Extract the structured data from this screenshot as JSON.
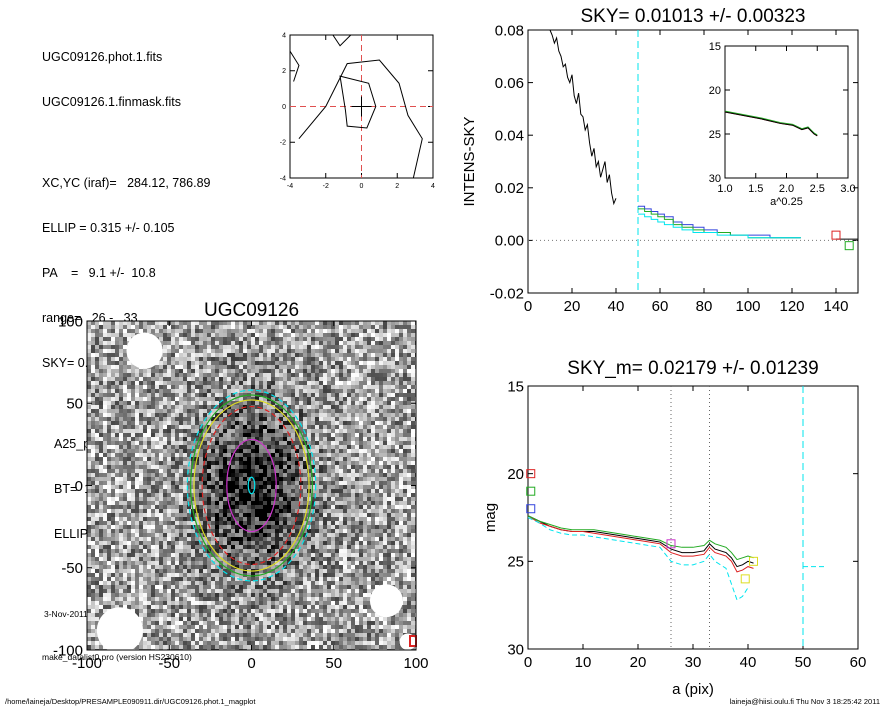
{
  "info": {
    "lines": [
      "UGC09126.phot.1.fits",
      "UGC09126.1.finmask.fits",
      "",
      "XC,YC (iraf)=   284.12, 786.89",
      "ELLIP = 0.315 +/- 0.105",
      "PA    =   9.1 +/-  10.8",
      "range=   26.-   33.",
      "SKY= 0.01013 +/- 0.00323",
      "",
      "A25_pix= 66.4   T=10.0  B",
      "BT=  15.11   MABS=-17.75",
      "ELLIP, PA= 0.094   999.0"
    ],
    "date": "3-Nov-2011 18:25:42.00",
    "program": "make_datalist0.pro (version HS230610)"
  },
  "footer": {
    "left": "/home/laineja/Desktop/PRESAMPLE090911.dir/UGC09126.phot.1_magplot",
    "right": "laineja@hiisi.oulu.fi  Thu Nov  3 18:25:42 2011"
  },
  "colors": {
    "cyan": "#00e5ee",
    "green": "#22aa22",
    "red": "#dd2222",
    "blue": "#3344dd",
    "magenta": "#cc33cc",
    "yellow": "#dddd22"
  },
  "chart_data": [
    {
      "type": "line",
      "name": "center-contour",
      "xlim": [
        -4,
        4
      ],
      "ylim": [
        -4,
        4
      ],
      "xticks": [
        -4,
        -2,
        0,
        2,
        4
      ],
      "yticks": [
        -4,
        -2,
        0,
        2,
        4
      ],
      "tick_labels": [
        "-4",
        "-2",
        "0",
        "2",
        "4"
      ]
    },
    {
      "type": "line",
      "title": "SKY= 0.01013 +/- 0.00323",
      "ylabel": "INTENS-SKY",
      "xlim": [
        0,
        150
      ],
      "ylim": [
        -0.02,
        0.08
      ],
      "xticks": [
        0,
        20,
        40,
        60,
        80,
        100,
        120,
        140
      ],
      "xtick_labels": [
        "0",
        "20",
        "40",
        "60",
        "80",
        "100",
        "120",
        "140"
      ],
      "yticks": [
        -0.02,
        0.0,
        0.02,
        0.04,
        0.06,
        0.08
      ],
      "ytick_labels": [
        "-0.02",
        "0.00",
        "0.02",
        "0.04",
        "0.06",
        "0.08"
      ],
      "sky_line_x": 50,
      "profile": {
        "x": [
          10,
          11,
          12,
          13,
          14,
          15,
          16,
          17,
          18,
          19,
          20,
          21,
          22,
          23,
          24,
          25,
          26,
          27,
          28,
          29,
          30,
          31,
          32,
          33,
          34,
          35,
          36,
          37,
          38,
          39,
          40
        ],
        "y": [
          0.08,
          0.078,
          0.075,
          0.077,
          0.072,
          0.07,
          0.066,
          0.067,
          0.062,
          0.06,
          0.063,
          0.055,
          0.052,
          0.056,
          0.048,
          0.047,
          0.042,
          0.044,
          0.037,
          0.032,
          0.035,
          0.028,
          0.03,
          0.024,
          0.027,
          0.03,
          0.022,
          0.025,
          0.018,
          0.014,
          0.016
        ]
      },
      "series": [
        {
          "name": "blue",
          "x": [
            50,
            53,
            56,
            59,
            62,
            66,
            70,
            75,
            80,
            86,
            92,
            100,
            110,
            124
          ],
          "y": [
            0.013,
            0.012,
            0.011,
            0.01,
            0.009,
            0.007,
            0.006,
            0.005,
            0.004,
            0.003,
            0.002,
            0.002,
            0.001,
            0.001
          ]
        },
        {
          "name": "green",
          "x": [
            50,
            53,
            56,
            59,
            62,
            66,
            70,
            75,
            80,
            86,
            92,
            100,
            110,
            124
          ],
          "y": [
            0.012,
            0.011,
            0.01,
            0.009,
            0.008,
            0.006,
            0.005,
            0.004,
            0.003,
            0.003,
            0.002,
            0.001,
            0.001,
            0.001
          ]
        },
        {
          "name": "cyan",
          "x": [
            50,
            53,
            56,
            59,
            62,
            66,
            70,
            75,
            80,
            86,
            92,
            100,
            110,
            124
          ],
          "y": [
            0.01,
            0.009,
            0.008,
            0.007,
            0.006,
            0.005,
            0.004,
            0.003,
            0.003,
            0.002,
            0.002,
            0.001,
            0.001,
            0.001
          ]
        }
      ],
      "markers": [
        {
          "color": "red",
          "x": 140,
          "y": 0.002
        },
        {
          "color": "green",
          "x": 146,
          "y": -0.002
        }
      ]
    },
    {
      "type": "line",
      "name": "inset",
      "xlabel": "a^0.25",
      "xlim": [
        1.0,
        3.0
      ],
      "ylim": [
        30,
        15
      ],
      "xticks": [
        1.0,
        1.5,
        2.0,
        2.5,
        3.0
      ],
      "xtick_labels": [
        "1.0",
        "1.5",
        "2.0",
        "2.5",
        "3.0"
      ],
      "yticks": [
        15,
        20,
        25,
        30
      ],
      "ytick_labels": [
        "15",
        "20",
        "25",
        "30"
      ],
      "series": [
        {
          "name": "red",
          "x": [
            1.0,
            1.3,
            1.6,
            1.9,
            2.1,
            2.25,
            2.35,
            2.45,
            2.5
          ],
          "y": [
            22.5,
            22.9,
            23.3,
            23.8,
            24.0,
            24.5,
            24.3,
            25.0,
            25.2
          ]
        },
        {
          "name": "green",
          "x": [
            1.0,
            1.3,
            1.6,
            1.9,
            2.1,
            2.25,
            2.35,
            2.45,
            2.5
          ],
          "y": [
            22.4,
            22.8,
            23.2,
            23.7,
            23.9,
            24.4,
            24.2,
            24.9,
            25.1
          ]
        },
        {
          "name": "black",
          "x": [
            1.0,
            1.3,
            1.6,
            1.9,
            2.1,
            2.25,
            2.35,
            2.45,
            2.5
          ],
          "y": [
            22.5,
            22.9,
            23.3,
            23.8,
            24.0,
            24.5,
            24.3,
            25.0,
            25.2
          ]
        }
      ]
    },
    {
      "type": "heatmap",
      "title": "UGC09126",
      "xlim": [
        -100,
        100
      ],
      "ylim": [
        -100,
        100
      ],
      "xticks": [
        -100,
        -50,
        0,
        50,
        100
      ],
      "xtick_labels": [
        "-100",
        "-50",
        "0",
        "50",
        "100"
      ],
      "yticks": [
        -100,
        -50,
        0,
        50,
        100
      ],
      "ytick_labels": [
        "-100",
        "-50",
        "0",
        "50",
        "100"
      ],
      "ellipses": [
        {
          "color": "cyan",
          "cx": 0,
          "cy": 0,
          "rx": 2,
          "ry": 5,
          "dash": false
        },
        {
          "color": "magenta",
          "cx": 0,
          "cy": 0,
          "rx": 15,
          "ry": 28,
          "dash": false
        },
        {
          "color": "red",
          "cx": 0,
          "cy": 0,
          "rx": 30,
          "ry": 48,
          "dash": true
        },
        {
          "color": "yellow",
          "cx": 0,
          "cy": 0,
          "rx": 35,
          "ry": 52,
          "dash": false
        },
        {
          "color": "green",
          "cx": 0,
          "cy": 0,
          "rx": 37,
          "ry": 55,
          "dash": false
        },
        {
          "color": "cyan",
          "cx": 0,
          "cy": 0,
          "rx": 39,
          "ry": 58,
          "dash": true
        }
      ]
    },
    {
      "type": "line",
      "title": "SKY_m=  0.02179 +/- 0.01239",
      "xlabel": "a (pix)",
      "ylabel": "mag",
      "xlim": [
        0,
        60
      ],
      "ylim": [
        30,
        15
      ],
      "xticks": [
        0,
        10,
        20,
        30,
        40,
        50,
        60
      ],
      "xtick_labels": [
        "0",
        "10",
        "20",
        "30",
        "40",
        "50",
        "60"
      ],
      "yticks": [
        15,
        20,
        25,
        30
      ],
      "ytick_labels": [
        "15",
        "20",
        "25",
        "30"
      ],
      "vlines": [
        26,
        33
      ],
      "sky_line_x": 50,
      "series": [
        {
          "name": "black",
          "x": [
            0,
            2,
            4,
            6,
            8,
            10,
            12,
            14,
            16,
            18,
            20,
            22,
            24,
            26,
            28,
            30,
            32,
            33,
            34,
            36,
            37,
            38,
            39,
            40,
            41
          ],
          "y": [
            22.4,
            22.7,
            23.0,
            23.2,
            23.3,
            23.3,
            23.3,
            23.4,
            23.5,
            23.6,
            23.7,
            23.8,
            23.9,
            24.3,
            24.5,
            24.5,
            24.4,
            24.0,
            24.3,
            24.5,
            24.8,
            25.3,
            25.2,
            25.0,
            25.1
          ]
        },
        {
          "name": "red",
          "x": [
            0,
            2,
            4,
            6,
            8,
            10,
            12,
            14,
            16,
            18,
            20,
            22,
            24,
            26,
            28,
            30,
            32,
            33,
            34,
            36,
            37,
            38,
            39,
            40,
            41
          ],
          "y": [
            22.4,
            22.8,
            23.0,
            23.2,
            23.3,
            23.3,
            23.4,
            23.5,
            23.6,
            23.7,
            23.8,
            23.9,
            24.0,
            24.5,
            24.7,
            24.7,
            24.6,
            24.2,
            24.5,
            24.7,
            25.0,
            25.6,
            25.5,
            25.3,
            25.4
          ]
        },
        {
          "name": "green",
          "x": [
            0,
            2,
            4,
            6,
            8,
            10,
            12,
            14,
            16,
            18,
            20,
            22,
            24,
            26,
            28,
            30,
            32,
            33,
            34,
            36,
            37,
            38,
            39,
            40,
            41
          ],
          "y": [
            22.4,
            22.7,
            22.9,
            23.1,
            23.2,
            23.2,
            23.2,
            23.3,
            23.4,
            23.5,
            23.6,
            23.7,
            23.8,
            24.1,
            24.2,
            24.2,
            24.1,
            23.8,
            24.0,
            24.2,
            24.5,
            24.9,
            24.8,
            24.7,
            24.8
          ]
        },
        {
          "name": "cyan",
          "x": [
            0,
            2,
            4,
            6,
            8,
            10,
            12,
            14,
            16,
            18,
            20,
            22,
            24,
            26,
            28,
            30,
            32,
            33,
            34,
            36,
            37,
            38,
            39,
            40
          ],
          "y": [
            22.5,
            22.8,
            23.2,
            23.4,
            23.5,
            23.5,
            23.6,
            23.7,
            23.8,
            23.9,
            24.0,
            24.1,
            24.2,
            25.0,
            25.2,
            25.2,
            25.0,
            24.6,
            25.0,
            25.4,
            26.3,
            27.2,
            27.0,
            26.5
          ]
        }
      ],
      "sky_segment": {
        "x": [
          50,
          54
        ],
        "y": 25.3
      },
      "markers": [
        {
          "color": "red",
          "x": 0.5,
          "y": 20.0
        },
        {
          "color": "green",
          "x": 0.5,
          "y": 21.0
        },
        {
          "color": "blue",
          "x": 0.5,
          "y": 22.0
        },
        {
          "color": "magenta",
          "x": 26,
          "y": 24.0
        },
        {
          "color": "yellow",
          "x": 39.5,
          "y": 26.0
        },
        {
          "color": "yellow",
          "x": 41,
          "y": 25.0
        }
      ]
    }
  ]
}
